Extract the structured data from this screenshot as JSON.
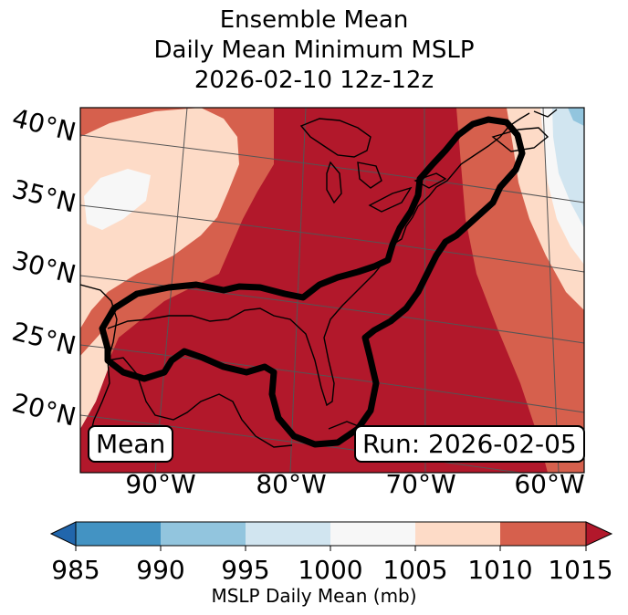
{
  "title": {
    "line1": "Ensemble Mean",
    "line2": "Daily Mean Minimum MSLP",
    "line3": "2026-02-10 12z-12z"
  },
  "map": {
    "lat_labels": [
      "40°N",
      "35°N",
      "30°N",
      "25°N",
      "20°N"
    ],
    "lon_labels": [
      "90°W",
      "80°W",
      "70°W",
      "60°W"
    ],
    "left_box": "Mean",
    "right_box": "Run: 2026-02-05"
  },
  "colorbar": {
    "ticks": [
      "985",
      "990",
      "995",
      "1000",
      "1005",
      "1010",
      "1015"
    ],
    "label": "MSLP Daily Mean (mb)",
    "colors": {
      "under": "#2166ac",
      "985-990": "#4393c3",
      "990-995": "#92c5de",
      "995-1000": "#d1e5f0",
      "1000-1005": "#f7f7f7",
      "1005-1010": "#fddbc7",
      "1010-1015": "#d6604d",
      "over": "#b2182b"
    }
  }
}
